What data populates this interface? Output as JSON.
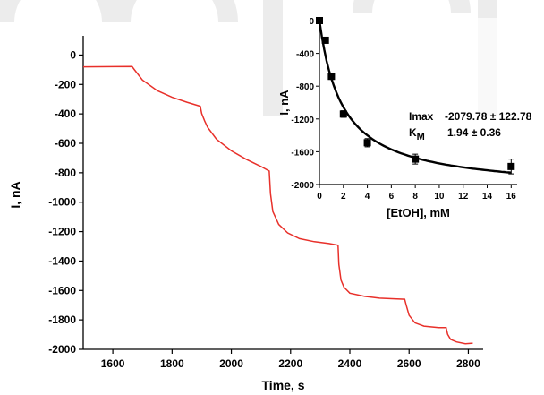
{
  "chart_data": [
    {
      "type": "line",
      "xlabel": "Time, s",
      "ylabel": "I, nA",
      "xlim": [
        1500,
        2850
      ],
      "ylim": [
        -2000,
        100
      ],
      "x_ticks": [
        1600,
        1800,
        2000,
        2200,
        2400,
        2600,
        2800
      ],
      "y_ticks": [
        0,
        -200,
        -400,
        -600,
        -800,
        -1000,
        -1200,
        -1400,
        -1600,
        -1800,
        -2000
      ],
      "grid": false,
      "line_color": "#e8302a",
      "series": [
        {
          "x": [
            1500,
            1665,
            1672,
            1700,
            1750,
            1800,
            1850,
            1895,
            1900,
            1910,
            1920,
            1950,
            2000,
            2050,
            2100,
            2128,
            2132,
            2140,
            2160,
            2190,
            2230,
            2280,
            2330,
            2360,
            2363,
            2370,
            2380,
            2400,
            2450,
            2500,
            2550,
            2585,
            2590,
            2600,
            2620,
            2650,
            2700,
            2725,
            2730,
            2740,
            2760,
            2790,
            2815
          ],
          "y": [
            -80,
            -80,
            -100,
            -170,
            -240,
            -285,
            -320,
            -350,
            -400,
            -450,
            -490,
            -570,
            -650,
            -710,
            -760,
            -790,
            -940,
            -1060,
            -1150,
            -1210,
            -1250,
            -1270,
            -1280,
            -1290,
            -1420,
            -1530,
            -1580,
            -1620,
            -1640,
            -1650,
            -1655,
            -1660,
            -1700,
            -1770,
            -1820,
            -1840,
            -1850,
            -1852,
            -1900,
            -1935,
            -1950,
            -1960,
            -1958
          ]
        }
      ]
    },
    {
      "type": "scatter",
      "xlabel": "[EtOH], mM",
      "ylabel": "I, nA",
      "xlim": [
        0,
        16.5
      ],
      "ylim": [
        -2000,
        0
      ],
      "x_ticks": [
        0,
        2,
        4,
        6,
        8,
        10,
        12,
        14,
        16
      ],
      "y_ticks": [
        -2000,
        -1600,
        -1200,
        -800,
        -400,
        0
      ],
      "grid": false,
      "points": {
        "x": [
          0,
          0.5,
          1,
          2,
          4,
          8,
          16
        ],
        "y": [
          0,
          -240,
          -680,
          -1140,
          -1490,
          -1690,
          -1780
        ],
        "err": [
          20,
          25,
          30,
          40,
          50,
          60,
          90
        ]
      },
      "fit": {
        "imax": -2079.78,
        "km": 1.94
      },
      "annotations": {
        "imax_label": "Imax",
        "imax_value": "-2079.78 ± 122.78",
        "km_label_main": "K",
        "km_label_sub": "M",
        "km_value": "1.94 ± 0.36"
      }
    }
  ]
}
